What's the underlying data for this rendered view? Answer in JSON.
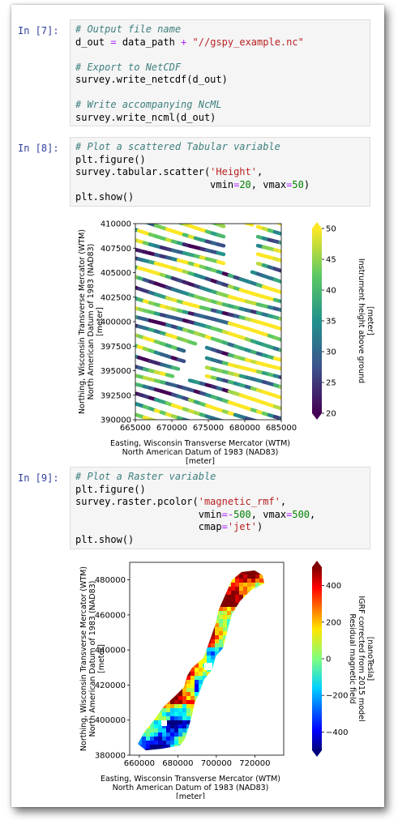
{
  "cells": [
    {
      "prompt": "In [7]:",
      "lines": [
        [
          {
            "t": "# Output file name",
            "c": "cm"
          }
        ],
        [
          {
            "t": "d_out ",
            "c": ""
          },
          {
            "t": "=",
            "c": "op"
          },
          {
            "t": " data_path ",
            "c": ""
          },
          {
            "t": "+",
            "c": "op"
          },
          {
            "t": " ",
            "c": ""
          },
          {
            "t": "\"//gspy_example.nc\"",
            "c": "st"
          }
        ],
        [],
        [
          {
            "t": "# Export to NetCDF",
            "c": "cm"
          }
        ],
        [
          {
            "t": "survey.write_netcdf(d_out)",
            "c": ""
          }
        ],
        [],
        [
          {
            "t": "# Write accompanying NcML",
            "c": "cm"
          }
        ],
        [
          {
            "t": "survey.write_ncml(d_out)",
            "c": ""
          }
        ]
      ]
    },
    {
      "prompt": "In [8]:",
      "lines": [
        [
          {
            "t": "# Plot a scattered Tabular variable",
            "c": "cm"
          }
        ],
        [
          {
            "t": "plt.figure()",
            "c": ""
          }
        ],
        [
          {
            "t": "survey.tabular.scatter(",
            "c": ""
          },
          {
            "t": "'Height'",
            "c": "st"
          },
          {
            "t": ",",
            "c": ""
          }
        ],
        [
          {
            "t": "                       vmin",
            "c": ""
          },
          {
            "t": "=",
            "c": "op"
          },
          {
            "t": "20",
            "c": "nm"
          },
          {
            "t": ", vmax",
            "c": ""
          },
          {
            "t": "=",
            "c": "op"
          },
          {
            "t": "50",
            "c": "nm"
          },
          {
            "t": ")",
            "c": ""
          }
        ],
        [
          {
            "t": "plt.show()",
            "c": ""
          }
        ]
      ]
    },
    {
      "prompt": "In [9]:",
      "lines": [
        [
          {
            "t": "# Plot a Raster variable",
            "c": "cm"
          }
        ],
        [
          {
            "t": "plt.figure()",
            "c": ""
          }
        ],
        [
          {
            "t": "survey.raster.pcolor(",
            "c": ""
          },
          {
            "t": "'magnetic_rmf'",
            "c": "st"
          },
          {
            "t": ",",
            "c": ""
          }
        ],
        [
          {
            "t": "                     vmin",
            "c": ""
          },
          {
            "t": "=-",
            "c": "op"
          },
          {
            "t": "500",
            "c": "nm"
          },
          {
            "t": ", vmax",
            "c": ""
          },
          {
            "t": "=",
            "c": "op"
          },
          {
            "t": "500",
            "c": "nm"
          },
          {
            "t": ",",
            "c": ""
          }
        ],
        [
          {
            "t": "                     cmap",
            "c": ""
          },
          {
            "t": "=",
            "c": "op"
          },
          {
            "t": "'jet'",
            "c": "st"
          },
          {
            "t": ")",
            "c": ""
          }
        ],
        [
          {
            "t": "plt.show()",
            "c": ""
          }
        ]
      ]
    }
  ],
  "chart_data": [
    {
      "type": "scatter",
      "variable": "Height",
      "colormap": "viridis",
      "xlim": [
        665000,
        685000
      ],
      "ylim": [
        390000,
        410000
      ],
      "xticks": [
        "665000",
        "670000",
        "675000",
        "680000",
        "685000"
      ],
      "yticks": [
        "390000",
        "392500",
        "395000",
        "397500",
        "400000",
        "402500",
        "405000",
        "407500",
        "410000"
      ],
      "xlabel": [
        "Easting,  Wisconsin Transverse Mercator (WTM)",
        "North American Datum of 1983 (NAD83)",
        "[meter]"
      ],
      "ylabel": [
        "Northing,  Wisconsin Transverse Mercator (WTM)",
        "North American Datum of 1983 (NAD83)",
        "[meter]"
      ],
      "colorbar": {
        "vmin": 20,
        "vmax": 50,
        "ticks": [
          "20",
          "25",
          "30",
          "35",
          "40",
          "45",
          "50"
        ],
        "label": [
          "Instrument height above ground",
          "[meter]"
        ]
      }
    },
    {
      "type": "heatmap",
      "variable": "magnetic_rmf",
      "colormap": "jet",
      "xlim": [
        655000,
        735000
      ],
      "ylim": [
        380000,
        490000
      ],
      "xticks": [
        "660000",
        "680000",
        "700000",
        "720000"
      ],
      "yticks": [
        "380000",
        "400000",
        "420000",
        "440000",
        "460000",
        "480000"
      ],
      "xlabel": [
        "Easting,  Wisconsin Transverse Mercator (WTM)",
        "North American Datum of 1983 (NAD83)",
        "[meter]"
      ],
      "ylabel": [
        "Northing,  Wisconsin Transverse Mercator (WTM)",
        "North American Datum of 1983 (NAD83)",
        "[meter]"
      ],
      "colorbar": {
        "vmin": -500,
        "vmax": 500,
        "ticks": [
          "−400",
          "−200",
          "0",
          "200",
          "400"
        ],
        "label": [
          "Residual magnetic field",
          "IGRF corrected from 2015 model",
          "[nanoTesla]"
        ]
      }
    }
  ]
}
